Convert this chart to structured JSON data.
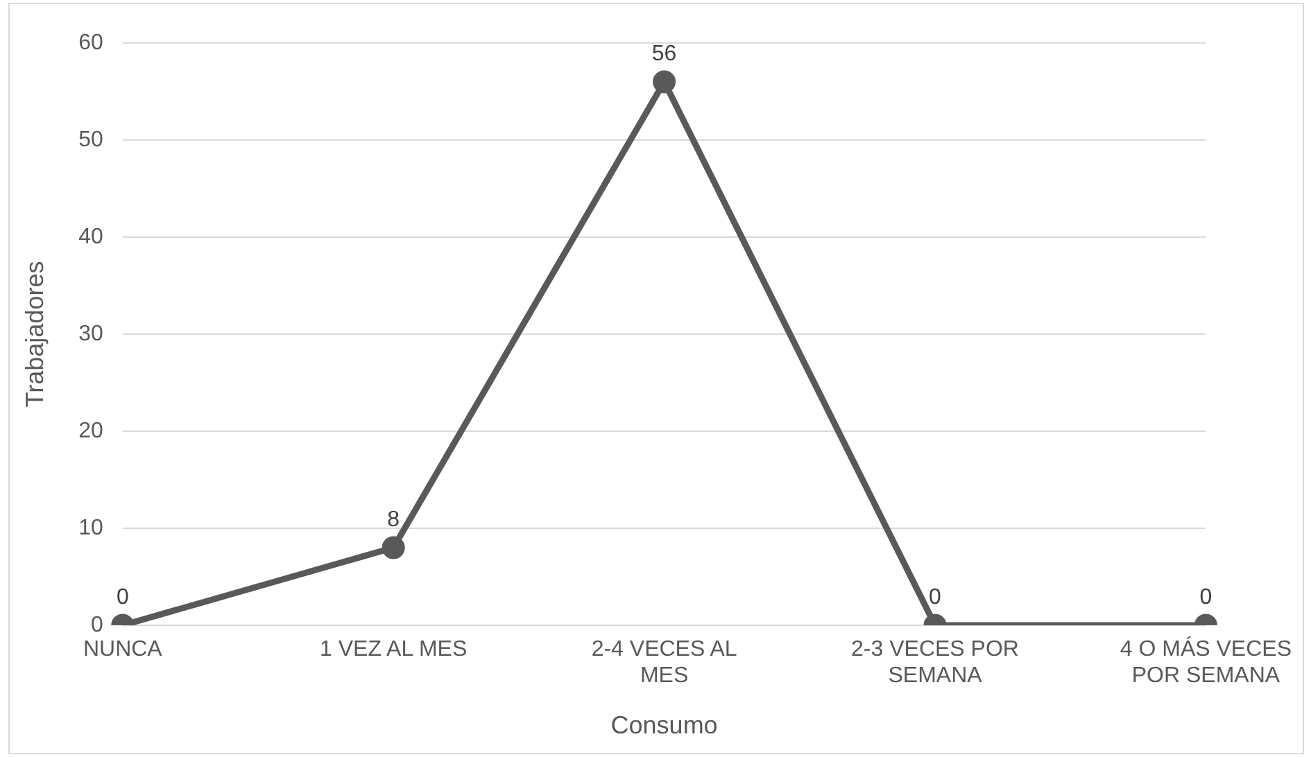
{
  "chart_data": {
    "type": "line",
    "xlabel": "Consumo",
    "ylabel": "Trabajadores",
    "categories": [
      "NUNCA",
      "1 VEZ AL MES",
      "2-4 VECES AL MES",
      "2-3 VECES POR SEMANA",
      "4 O MÁS VECES POR SEMANA"
    ],
    "series": [
      {
        "color": "#595959",
        "values": [
          0,
          8,
          56,
          0,
          0
        ]
      }
    ],
    "ylim": [
      0,
      60
    ],
    "yticks": [
      0,
      10,
      20,
      30,
      40,
      50,
      60
    ],
    "grid": "y",
    "legend": false,
    "marker": "circle",
    "line_style": "solid",
    "data_labels": true
  }
}
